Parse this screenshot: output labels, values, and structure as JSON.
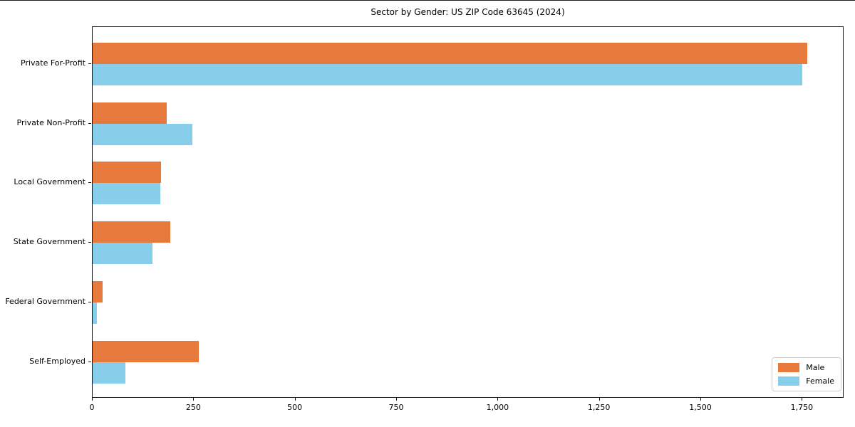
{
  "chart_data": {
    "type": "bar",
    "orientation": "horizontal",
    "title": "Sector by Gender: US ZIP Code 63645 (2024)",
    "categories": [
      "Private For-Profit",
      "Private Non-Profit",
      "Local Government",
      "State Government",
      "Federal Government",
      "Self-Employed"
    ],
    "series": [
      {
        "name": "Male",
        "color": "#e8793c",
        "values": [
          1765,
          183,
          169,
          191,
          25,
          262
        ]
      },
      {
        "name": "Female",
        "color": "#87ceeb",
        "values": [
          1752,
          246,
          167,
          148,
          11,
          81
        ]
      }
    ],
    "xlabel": "",
    "ylabel": "",
    "xlim": [
      0,
      1853
    ],
    "xticks": [
      {
        "value": 0,
        "label": "0"
      },
      {
        "value": 250,
        "label": "250"
      },
      {
        "value": 500,
        "label": "500"
      },
      {
        "value": 750,
        "label": "750"
      },
      {
        "value": 1000,
        "label": "1,000"
      },
      {
        "value": 1250,
        "label": "1,250"
      },
      {
        "value": 1500,
        "label": "1,500"
      },
      {
        "value": 1750,
        "label": "1,750"
      }
    ],
    "grid": false,
    "legend_position": "lower right"
  }
}
